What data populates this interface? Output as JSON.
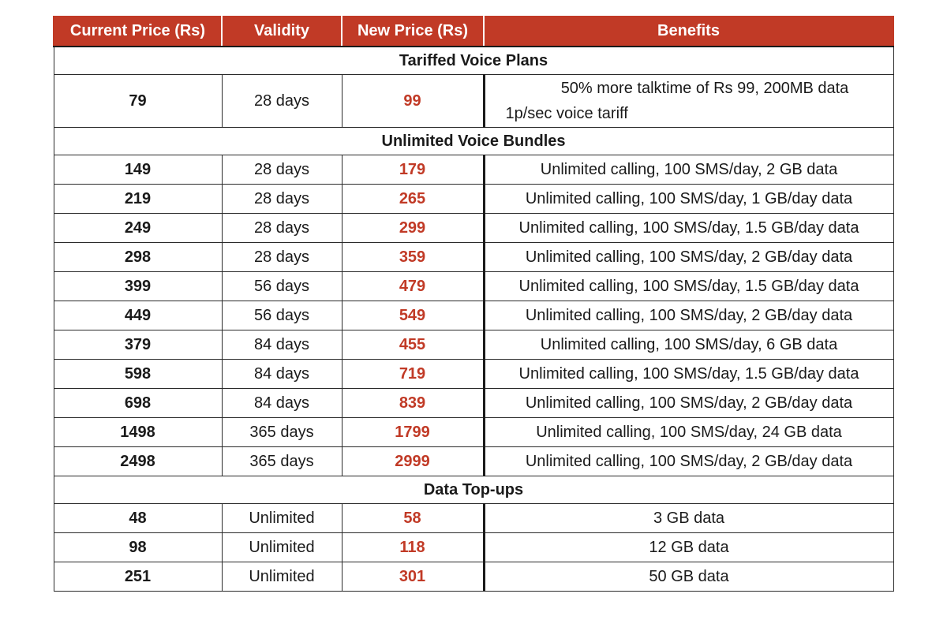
{
  "headers": {
    "current_price": "Current Price (Rs)",
    "validity": "Validity",
    "new_price": "New Price (Rs)",
    "benefits": "Benefits"
  },
  "sections": [
    {
      "title": "Tariffed Voice Plans",
      "rows": [
        {
          "current": "79",
          "validity": "28 days",
          "new": "99",
          "benefits": [
            "50% more talktime of Rs 99, 200MB data",
            "1p/sec voice tariff"
          ]
        }
      ]
    },
    {
      "title": "Unlimited Voice Bundles",
      "rows": [
        {
          "current": "149",
          "validity": "28 days",
          "new": "179",
          "benefits": [
            "Unlimited calling, 100 SMS/day, 2 GB data"
          ]
        },
        {
          "current": "219",
          "validity": "28 days",
          "new": "265",
          "benefits": [
            "Unlimited calling, 100 SMS/day, 1 GB/day data"
          ]
        },
        {
          "current": "249",
          "validity": "28 days",
          "new": "299",
          "benefits": [
            "Unlimited calling, 100 SMS/day, 1.5 GB/day data"
          ]
        },
        {
          "current": "298",
          "validity": "28 days",
          "new": "359",
          "benefits": [
            "Unlimited calling, 100 SMS/day, 2 GB/day data"
          ]
        },
        {
          "current": "399",
          "validity": "56 days",
          "new": "479",
          "benefits": [
            "Unlimited calling, 100 SMS/day, 1.5 GB/day data"
          ]
        },
        {
          "current": "449",
          "validity": "56 days",
          "new": "549",
          "benefits": [
            "Unlimited calling, 100 SMS/day, 2 GB/day data"
          ]
        },
        {
          "current": "379",
          "validity": "84 days",
          "new": "455",
          "benefits": [
            "Unlimited calling, 100 SMS/day, 6 GB data"
          ]
        },
        {
          "current": "598",
          "validity": "84 days",
          "new": "719",
          "benefits": [
            "Unlimited calling, 100 SMS/day, 1.5 GB/day data"
          ]
        },
        {
          "current": "698",
          "validity": "84 days",
          "new": "839",
          "benefits": [
            "Unlimited calling, 100 SMS/day, 2 GB/day data"
          ]
        },
        {
          "current": "1498",
          "validity": "365 days",
          "new": "1799",
          "benefits": [
            "Unlimited calling, 100 SMS/day, 24 GB data"
          ]
        },
        {
          "current": "2498",
          "validity": "365 days",
          "new": "2999",
          "benefits": [
            "Unlimited calling, 100 SMS/day, 2 GB/day data"
          ]
        }
      ]
    },
    {
      "title": "Data Top-ups",
      "rows": [
        {
          "current": "48",
          "validity": "Unlimited",
          "new": "58",
          "benefits": [
            "3 GB data"
          ]
        },
        {
          "current": "98",
          "validity": "Unlimited",
          "new": "118",
          "benefits": [
            "12 GB data"
          ]
        },
        {
          "current": "251",
          "validity": "Unlimited",
          "new": "301",
          "benefits": [
            "50 GB data"
          ]
        }
      ]
    }
  ],
  "colors": {
    "header_bg": "#c13a26",
    "header_text": "#ffffff",
    "new_price_text": "#c13a26",
    "border": "#2a2a2a"
  }
}
